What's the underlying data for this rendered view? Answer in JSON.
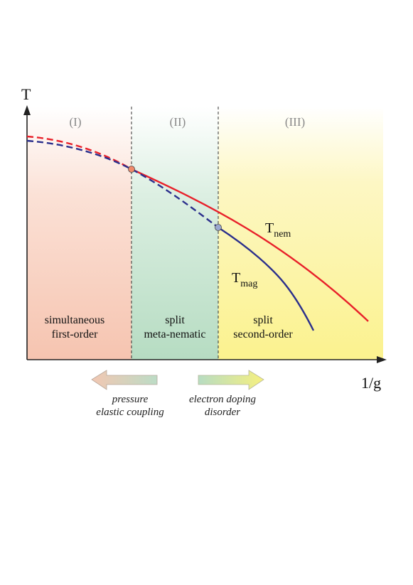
{
  "axes": {
    "y_label": "T",
    "x_label": "1/g"
  },
  "regions": [
    {
      "numeral": "(I)",
      "line1": "simultaneous",
      "line2": "first-order"
    },
    {
      "numeral": "(II)",
      "line1": "split",
      "line2": "meta-nematic"
    },
    {
      "numeral": "(III)",
      "line1": "split",
      "line2": "second-order"
    }
  ],
  "curves": {
    "nem": {
      "base": "T",
      "sub": "nem",
      "color": "#e8202a"
    },
    "mag": {
      "base": "T",
      "sub": "mag",
      "color": "#2b2f8c"
    }
  },
  "arrows": {
    "left": {
      "line1": "pressure",
      "line2": "elastic coupling"
    },
    "right": {
      "line1": "electron doping",
      "line2": "disorder"
    }
  },
  "colors": {
    "region1": "#f6c9b8",
    "region2": "#bfe0c9",
    "region3": "#fbf49a",
    "point1": "#f08a6a",
    "point2": "#9aa8d0"
  }
}
